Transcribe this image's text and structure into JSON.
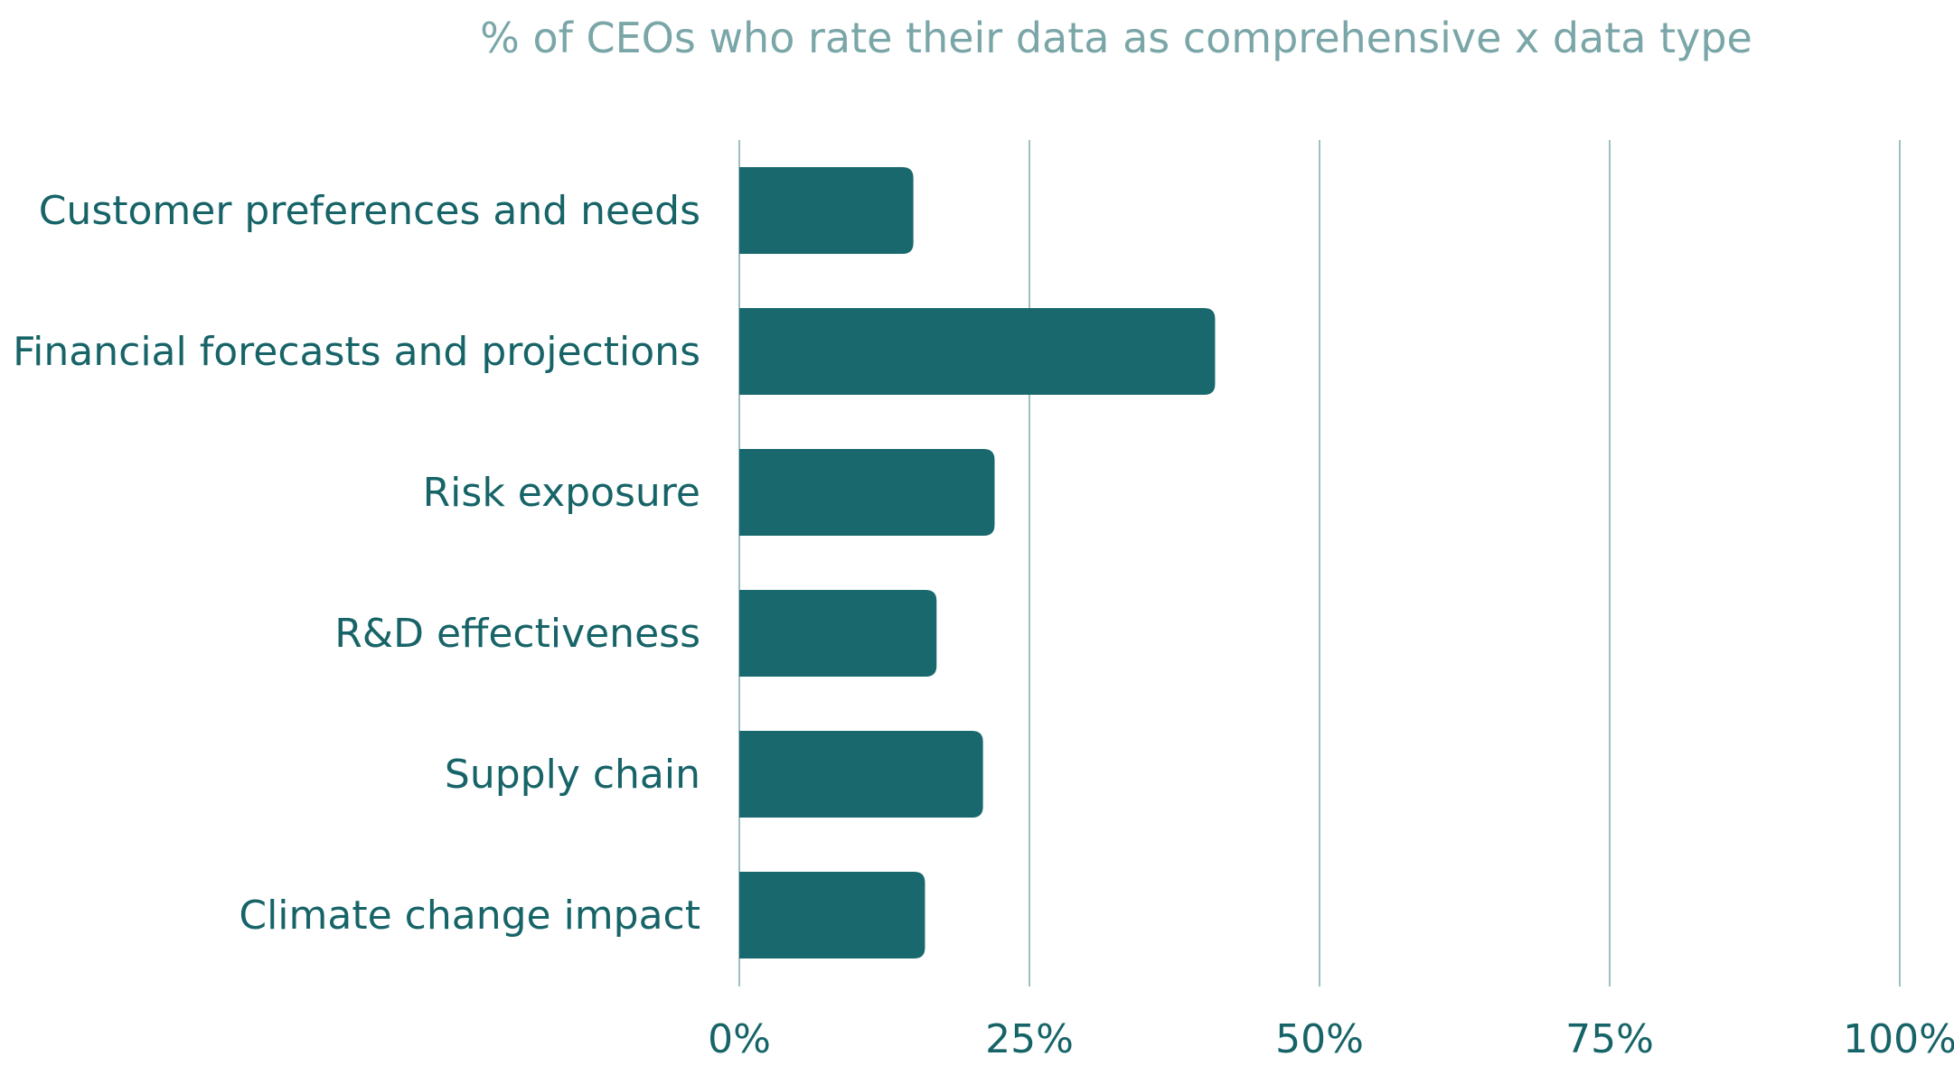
{
  "chart_data": {
    "type": "bar",
    "orientation": "horizontal",
    "title": "% of CEOs who rate their data as comprehensive x data type",
    "categories": [
      "Customer preferences and needs",
      "Financial forecasts and projections",
      "Risk exposure",
      "R&D effectiveness",
      "Supply chain",
      "Climate change impact"
    ],
    "values": [
      15,
      41,
      22,
      17,
      21,
      16
    ],
    "xlim": [
      0,
      100
    ],
    "xticks": [
      0,
      25,
      50,
      75,
      100
    ],
    "xtick_labels": [
      "0%",
      "25%",
      "50%",
      "75%",
      "100%"
    ],
    "grid": "vertical",
    "legend": "none",
    "colors": {
      "bar": "#19686d",
      "grid": "#9fbfc1",
      "title": "#7aa6a8",
      "text": "#176468"
    }
  }
}
